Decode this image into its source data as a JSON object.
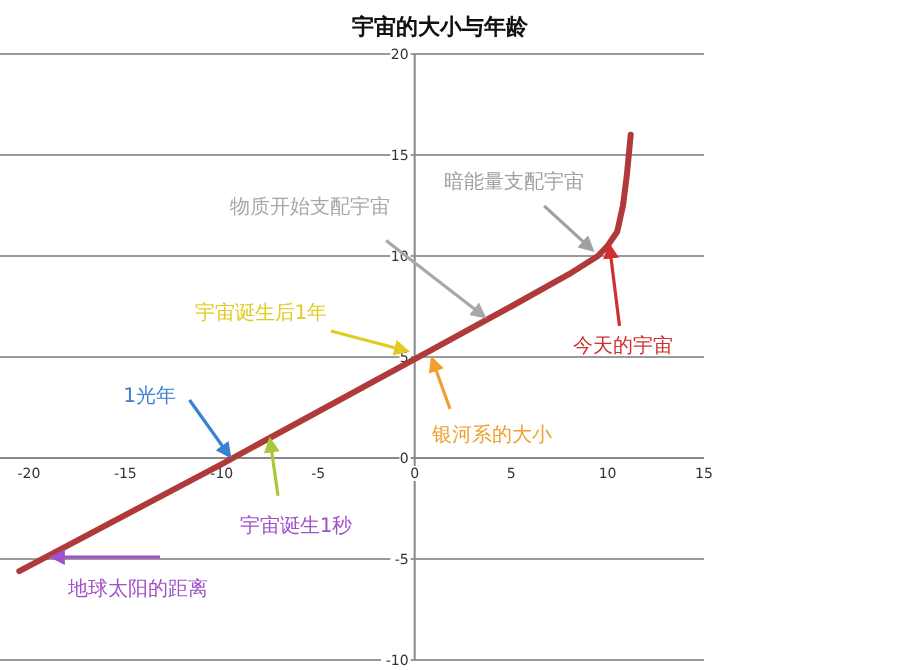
{
  "chart_data": {
    "type": "line",
    "title": "宇宙的大小与年龄",
    "xlim": [
      -21.5,
      15
    ],
    "ylim": [
      -10,
      20
    ],
    "xticks": [
      -20,
      -15,
      -10,
      -5,
      0,
      5,
      10,
      15
    ],
    "yticks": [
      -10,
      -5,
      0,
      5,
      10,
      15,
      20
    ],
    "grid": "y",
    "series": [
      {
        "color": "#b03a3a",
        "x": [
          -20.5,
          -10,
          0,
          5,
          8,
          9.5,
          10,
          10.5,
          10.8,
          11,
          11.2
        ],
        "values": [
          -5.6,
          -0.3,
          4.9,
          7.5,
          9.1,
          10,
          10.5,
          11.2,
          12.5,
          14,
          16
        ]
      }
    ],
    "annotations": [
      {
        "text": "宇宙诞生后1年",
        "x": -0.4,
        "y": 5.3
      },
      {
        "text": "物质开始支配宇宙",
        "x": 3.6,
        "y": 7.0
      },
      {
        "text": "暗能量支配宇宙",
        "x": 9.2,
        "y": 10.3
      },
      {
        "text": "今天的宇宙",
        "x": 10.1,
        "y": 10.5
      },
      {
        "text": "银河系的大小",
        "x": 0.9,
        "y": 4.9
      },
      {
        "text": "1光年",
        "x": -9.6,
        "y": 0.1
      },
      {
        "text": "宇宙诞生1秒",
        "x": -7.5,
        "y": 0.9
      },
      {
        "text": "地球太阳的距离",
        "x": -18.8,
        "y": -4.9
      }
    ]
  }
}
